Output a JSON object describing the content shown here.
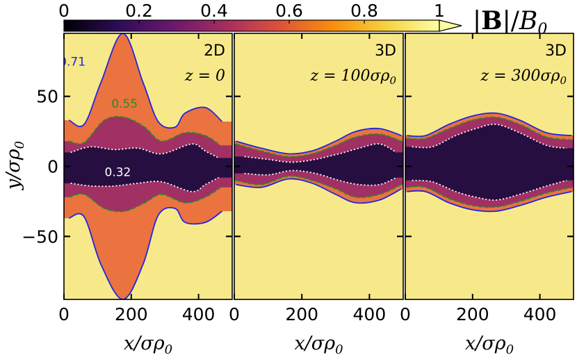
{
  "chart_data": {
    "type": "heatmap",
    "colorbar": {
      "label": "|B|/B0",
      "range": [
        0,
        1
      ],
      "ticks": [
        0,
        0.2,
        0.4,
        0.6,
        0.8,
        1
      ],
      "tick_labels": [
        "0",
        "0.2",
        "0.4",
        "0.6",
        "0.8",
        "1"
      ],
      "extend": "max",
      "colors": [
        "#000004",
        "#2c0b57",
        "#6a176e",
        "#a52c60",
        "#dd513a",
        "#f98d0a",
        "#f7d13d",
        "#fcffa4"
      ]
    },
    "xlabel": "x/σρ0",
    "ylabel": "y/σρ0",
    "xlim": [
      0,
      500
    ],
    "ylim": [
      -95,
      95
    ],
    "xticks": [
      0,
      200,
      400
    ],
    "xtick_labels": [
      "0",
      "200",
      "400"
    ],
    "yticks": [
      -50,
      0,
      50
    ],
    "ytick_labels": [
      "−50",
      "0",
      "50"
    ],
    "contour_levels": [
      {
        "value": 0.71,
        "label": "0.71",
        "color": "#1f24e6",
        "style": "solid"
      },
      {
        "value": 0.55,
        "label": "0.55",
        "color": "#2e8b22",
        "style": "dashed"
      },
      {
        "value": 0.32,
        "label": "0.32",
        "color": "#ffffff",
        "style": "dotted"
      }
    ],
    "panels": [
      {
        "tag": "2D",
        "z": "z = 0",
        "contour_label_text": [
          {
            "level": "0.71",
            "x": 25,
            "y": 72
          },
          {
            "level": "0.55",
            "x": 180,
            "y": 42
          },
          {
            "level": "0.32",
            "x": 160,
            "y": -7
          }
        ],
        "contours": {
          "0.71": [
            {
              "x": 15,
              "upper": 33,
              "lower": -37
            },
            {
              "x": 60,
              "upper": 30,
              "lower": -36
            },
            {
              "x": 110,
              "upper": 60,
              "lower": -70
            },
            {
              "x": 175,
              "upper": 95,
              "lower": -95
            },
            {
              "x": 235,
              "upper": 60,
              "lower": -70
            },
            {
              "x": 280,
              "upper": 32,
              "lower": -35
            },
            {
              "x": 330,
              "upper": 28,
              "lower": -30
            },
            {
              "x": 360,
              "upper": 38,
              "lower": -40
            },
            {
              "x": 420,
              "upper": 42,
              "lower": -40
            },
            {
              "x": 470,
              "upper": 32,
              "lower": -32
            }
          ],
          "0.55": [
            {
              "x": 15,
              "upper": 18,
              "lower": -22
            },
            {
              "x": 60,
              "upper": 17,
              "lower": -20
            },
            {
              "x": 120,
              "upper": 33,
              "lower": -30
            },
            {
              "x": 180,
              "upper": 35,
              "lower": -32
            },
            {
              "x": 240,
              "upper": 28,
              "lower": -26
            },
            {
              "x": 290,
              "upper": 18,
              "lower": -20
            },
            {
              "x": 360,
              "upper": 24,
              "lower": -26
            },
            {
              "x": 420,
              "upper": 22,
              "lower": -22
            },
            {
              "x": 465,
              "upper": 15,
              "lower": -15
            }
          ],
          "0.32": [
            {
              "x": 20,
              "upper": 10,
              "lower": -12
            },
            {
              "x": 80,
              "upper": 14,
              "lower": -14
            },
            {
              "x": 150,
              "upper": 12,
              "lower": -14
            },
            {
              "x": 220,
              "upper": 13,
              "lower": -12
            },
            {
              "x": 290,
              "upper": 9,
              "lower": -11
            },
            {
              "x": 380,
              "upper": 16,
              "lower": -18
            },
            {
              "x": 420,
              "upper": 11,
              "lower": -13
            },
            {
              "x": 460,
              "upper": 6,
              "lower": -8
            }
          ]
        }
      },
      {
        "tag": "3D",
        "z": "z = 100σρ0",
        "contour_label_text": [],
        "contours": {
          "0.71": [
            {
              "x": 5,
              "upper": 18,
              "lower": -13
            },
            {
              "x": 80,
              "upper": 13,
              "lower": -15
            },
            {
              "x": 160,
              "upper": 9,
              "lower": -9
            },
            {
              "x": 230,
              "upper": 11,
              "lower": -12
            },
            {
              "x": 300,
              "upper": 18,
              "lower": -20
            },
            {
              "x": 360,
              "upper": 25,
              "lower": -26
            },
            {
              "x": 430,
              "upper": 27,
              "lower": -24
            },
            {
              "x": 495,
              "upper": 22,
              "lower": -16
            }
          ],
          "0.55": [
            {
              "x": 5,
              "upper": 16,
              "lower": -10
            },
            {
              "x": 80,
              "upper": 11,
              "lower": -13
            },
            {
              "x": 160,
              "upper": 7,
              "lower": -7
            },
            {
              "x": 230,
              "upper": 9,
              "lower": -10
            },
            {
              "x": 300,
              "upper": 15,
              "lower": -16
            },
            {
              "x": 360,
              "upper": 21,
              "lower": -22
            },
            {
              "x": 430,
              "upper": 23,
              "lower": -20
            },
            {
              "x": 495,
              "upper": 18,
              "lower": -13
            }
          ],
          "0.32": [
            {
              "x": 30,
              "upper": 7,
              "lower": -5
            },
            {
              "x": 100,
              "upper": 5,
              "lower": -6
            },
            {
              "x": 170,
              "upper": 3,
              "lower": -3
            },
            {
              "x": 240,
              "upper": 5,
              "lower": -5
            },
            {
              "x": 310,
              "upper": 9,
              "lower": -10
            },
            {
              "x": 370,
              "upper": 13,
              "lower": -13
            },
            {
              "x": 430,
              "upper": 16,
              "lower": -13
            },
            {
              "x": 480,
              "upper": 10,
              "lower": -8
            }
          ]
        }
      },
      {
        "tag": "3D",
        "z": "z = 300σρ0",
        "contour_label_text": [],
        "contours": {
          "0.71": [
            {
              "x": 5,
              "upper": 22,
              "lower": -18
            },
            {
              "x": 60,
              "upper": 22,
              "lower": -18
            },
            {
              "x": 130,
              "upper": 30,
              "lower": -26
            },
            {
              "x": 200,
              "upper": 36,
              "lower": -31
            },
            {
              "x": 270,
              "upper": 38,
              "lower": -32
            },
            {
              "x": 340,
              "upper": 33,
              "lower": -28
            },
            {
              "x": 420,
              "upper": 24,
              "lower": -22
            },
            {
              "x": 495,
              "upper": 22,
              "lower": -18
            }
          ],
          "0.55": [
            {
              "x": 5,
              "upper": 20,
              "lower": -15
            },
            {
              "x": 60,
              "upper": 20,
              "lower": -15
            },
            {
              "x": 130,
              "upper": 27,
              "lower": -23
            },
            {
              "x": 200,
              "upper": 33,
              "lower": -28
            },
            {
              "x": 270,
              "upper": 35,
              "lower": -29
            },
            {
              "x": 340,
              "upper": 30,
              "lower": -25
            },
            {
              "x": 420,
              "upper": 21,
              "lower": -19
            },
            {
              "x": 495,
              "upper": 19,
              "lower": -15
            }
          ],
          "0.32": [
            {
              "x": 20,
              "upper": 14,
              "lower": -10
            },
            {
              "x": 80,
              "upper": 14,
              "lower": -11
            },
            {
              "x": 150,
              "upper": 22,
              "lower": -18
            },
            {
              "x": 210,
              "upper": 27,
              "lower": -22
            },
            {
              "x": 270,
              "upper": 30,
              "lower": -24
            },
            {
              "x": 340,
              "upper": 24,
              "lower": -20
            },
            {
              "x": 420,
              "upper": 15,
              "lower": -14
            },
            {
              "x": 480,
              "upper": 13,
              "lower": -10
            }
          ]
        }
      }
    ]
  }
}
